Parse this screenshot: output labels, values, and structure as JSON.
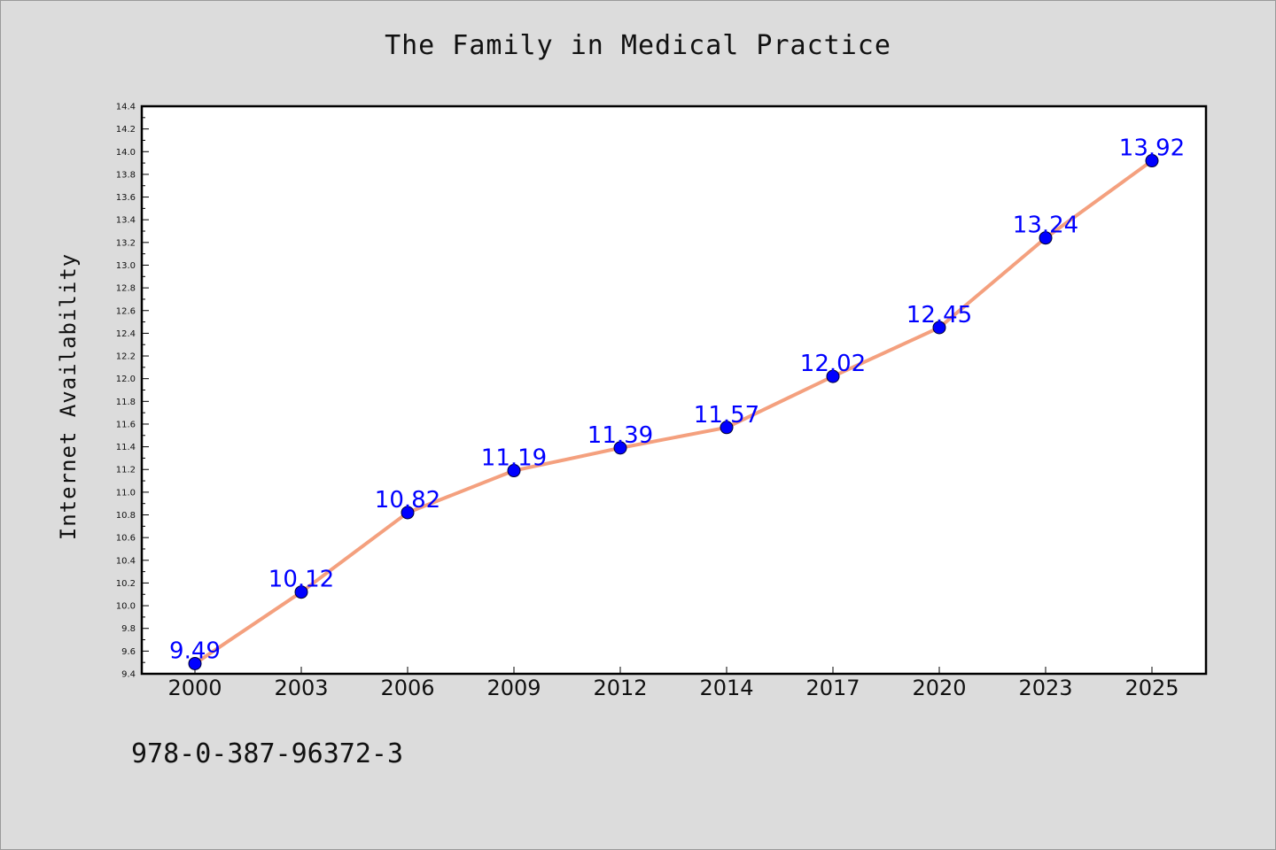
{
  "chart_data": {
    "type": "line",
    "title": "The Family in Medical Practice",
    "ylabel": "Internet Availability",
    "xlabel": "",
    "categories": [
      "2000",
      "2003",
      "2006",
      "2009",
      "2012",
      "2014",
      "2017",
      "2020",
      "2023",
      "2025"
    ],
    "series": [
      {
        "values": [
          9.49,
          10.12,
          10.82,
          11.19,
          11.39,
          11.57,
          12.02,
          12.45,
          13.24,
          13.92
        ],
        "line_color": "#f4a07e",
        "marker_color": "#0000ff"
      }
    ],
    "data_labels": [
      "9.49",
      "10.12",
      "10.82",
      "11.19",
      "11.39",
      "11.57",
      "12.02",
      "12.45",
      "13.24",
      "13.92"
    ],
    "data_label_color": "#0000ff",
    "ylim": [
      9.4,
      14.4
    ],
    "yticks": [
      "9.4",
      "9.6",
      "9.8",
      "10.0",
      "10.2",
      "10.4",
      "10.6",
      "10.8",
      "11.0",
      "11.2",
      "11.4",
      "11.6",
      "11.8",
      "12.0",
      "12.2",
      "12.4",
      "12.6",
      "12.8",
      "13.0",
      "13.2",
      "13.4",
      "13.6",
      "13.8",
      "14.0",
      "14.2",
      "14.4"
    ],
    "grid": false,
    "legend": "none"
  },
  "footer": {
    "code": "978-0-387-96372-3"
  }
}
